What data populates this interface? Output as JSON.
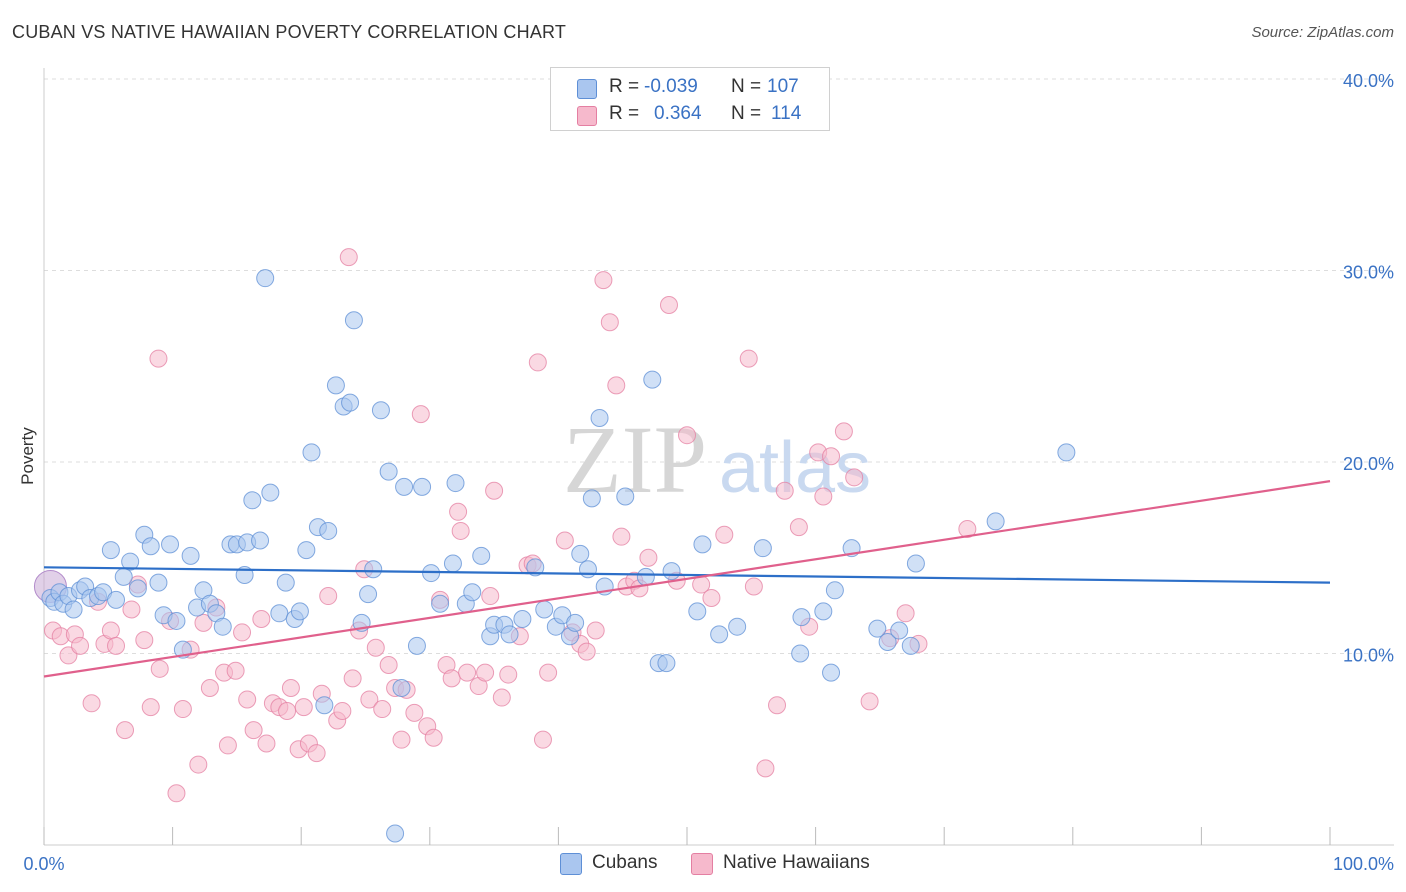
{
  "header": {
    "title": "CUBAN VS NATIVE HAWAIIAN POVERTY CORRELATION CHART",
    "source": "Source: ZipAtlas.com"
  },
  "watermark": {
    "zip": "ZIP",
    "atlas": "atlas"
  },
  "legend": {
    "rows": [
      {
        "r_label": "R =",
        "r_value": "-0.039",
        "n_label": "N =",
        "n_value": "107"
      },
      {
        "r_label": "R =",
        "r_value": "0.364",
        "n_label": "N =",
        "n_value": "114"
      }
    ]
  },
  "bottom_legend": {
    "items": [
      "Cubans",
      "Native Hawaiians"
    ]
  },
  "colors": {
    "cubans_fill": "#aac6ef",
    "cubans_stroke": "#5e8fd6",
    "cubans_line": "#2d6fc8",
    "hawaiians_fill": "#f6b9cc",
    "hawaiians_stroke": "#e47fa2",
    "hawaiians_line": "#e0608c",
    "tick_text": "#3a72c4",
    "grid": "#dddddd"
  },
  "chart_data": {
    "type": "scatter",
    "title": "CUBAN VS NATIVE HAWAIIAN POVERTY CORRELATION CHART",
    "xlabel": "",
    "ylabel": "Poverty",
    "xlim": [
      0,
      100
    ],
    "ylim": [
      0,
      40
    ],
    "x_tick_labels": [
      "0.0%",
      "100.0%"
    ],
    "y_ticks": [
      10,
      20,
      30,
      40
    ],
    "y_tick_labels": [
      "10.0%",
      "20.0%",
      "30.0%",
      "40.0%"
    ],
    "grid": true,
    "legend_position": "top-center",
    "series": [
      {
        "name": "Cubans",
        "R": -0.039,
        "N": 107,
        "trend": {
          "x": [
            0,
            100
          ],
          "y": [
            14.5,
            13.7
          ]
        },
        "points": [
          [
            0.5,
            12.9
          ],
          [
            0.8,
            12.7
          ],
          [
            1.2,
            13.2
          ],
          [
            1.5,
            12.6
          ],
          [
            1.9,
            13.0
          ],
          [
            2.3,
            12.3
          ],
          [
            2.8,
            13.3
          ],
          [
            3.2,
            13.5
          ],
          [
            3.6,
            12.9
          ],
          [
            4.2,
            13.0
          ],
          [
            4.6,
            13.2
          ],
          [
            5.2,
            15.4
          ],
          [
            5.6,
            12.8
          ],
          [
            6.2,
            14.0
          ],
          [
            6.7,
            14.8
          ],
          [
            7.3,
            13.4
          ],
          [
            7.8,
            16.2
          ],
          [
            8.3,
            15.6
          ],
          [
            8.9,
            13.7
          ],
          [
            9.3,
            12.0
          ],
          [
            9.8,
            15.7
          ],
          [
            10.3,
            11.7
          ],
          [
            10.8,
            10.2
          ],
          [
            11.4,
            15.1
          ],
          [
            11.9,
            12.4
          ],
          [
            12.4,
            13.3
          ],
          [
            12.9,
            12.6
          ],
          [
            13.4,
            12.1
          ],
          [
            13.9,
            11.4
          ],
          [
            14.5,
            15.7
          ],
          [
            15.0,
            15.7
          ],
          [
            15.6,
            14.1
          ],
          [
            15.8,
            15.8
          ],
          [
            16.2,
            18.0
          ],
          [
            16.8,
            15.9
          ],
          [
            17.2,
            29.6
          ],
          [
            17.6,
            18.4
          ],
          [
            18.3,
            12.1
          ],
          [
            18.8,
            13.7
          ],
          [
            19.5,
            11.8
          ],
          [
            19.9,
            12.2
          ],
          [
            20.4,
            15.4
          ],
          [
            20.8,
            20.5
          ],
          [
            21.3,
            16.6
          ],
          [
            21.8,
            7.3
          ],
          [
            22.1,
            16.4
          ],
          [
            22.7,
            24.0
          ],
          [
            23.3,
            22.9
          ],
          [
            23.8,
            23.1
          ],
          [
            24.1,
            27.4
          ],
          [
            24.7,
            11.6
          ],
          [
            25.2,
            13.1
          ],
          [
            25.6,
            14.4
          ],
          [
            26.2,
            22.7
          ],
          [
            26.8,
            19.5
          ],
          [
            27.3,
            0.6
          ],
          [
            27.8,
            8.2
          ],
          [
            28.0,
            18.7
          ],
          [
            29.0,
            10.4
          ],
          [
            29.4,
            18.7
          ],
          [
            30.1,
            14.2
          ],
          [
            30.8,
            12.6
          ],
          [
            31.8,
            14.7
          ],
          [
            32.0,
            18.9
          ],
          [
            32.8,
            12.6
          ],
          [
            33.3,
            13.2
          ],
          [
            34.0,
            15.1
          ],
          [
            34.7,
            10.9
          ],
          [
            35.0,
            11.5
          ],
          [
            35.8,
            11.5
          ],
          [
            36.2,
            11.0
          ],
          [
            37.2,
            11.8
          ],
          [
            38.2,
            14.5
          ],
          [
            38.9,
            12.3
          ],
          [
            39.8,
            11.4
          ],
          [
            40.3,
            12.0
          ],
          [
            40.9,
            10.9
          ],
          [
            41.3,
            11.6
          ],
          [
            41.7,
            15.2
          ],
          [
            42.3,
            14.4
          ],
          [
            42.6,
            18.1
          ],
          [
            43.2,
            22.3
          ],
          [
            43.6,
            13.5
          ],
          [
            45.2,
            18.2
          ],
          [
            46.8,
            14.0
          ],
          [
            47.3,
            24.3
          ],
          [
            47.8,
            9.5
          ],
          [
            48.4,
            9.5
          ],
          [
            48.8,
            14.3
          ],
          [
            50.8,
            12.2
          ],
          [
            51.2,
            15.7
          ],
          [
            52.5,
            11.0
          ],
          [
            53.9,
            11.4
          ],
          [
            55.9,
            15.5
          ],
          [
            58.8,
            10.0
          ],
          [
            58.9,
            11.9
          ],
          [
            60.6,
            12.2
          ],
          [
            61.2,
            9.0
          ],
          [
            61.5,
            13.3
          ],
          [
            62.8,
            15.5
          ],
          [
            64.8,
            11.3
          ],
          [
            65.6,
            10.6
          ],
          [
            66.5,
            11.2
          ],
          [
            67.4,
            10.4
          ],
          [
            67.8,
            14.7
          ],
          [
            74.0,
            16.9
          ],
          [
            79.5,
            20.5
          ]
        ]
      },
      {
        "name": "Native Hawaiians",
        "R": 0.364,
        "N": 114,
        "trend": {
          "x": [
            0,
            100
          ],
          "y": [
            8.8,
            19.0
          ]
        },
        "points": [
          [
            0.7,
            11.2
          ],
          [
            1.3,
            10.9
          ],
          [
            1.9,
            9.9
          ],
          [
            2.4,
            11.0
          ],
          [
            2.8,
            10.4
          ],
          [
            3.7,
            7.4
          ],
          [
            4.2,
            12.7
          ],
          [
            4.7,
            10.5
          ],
          [
            5.2,
            11.2
          ],
          [
            5.6,
            10.4
          ],
          [
            6.3,
            6.0
          ],
          [
            6.8,
            12.3
          ],
          [
            7.3,
            13.6
          ],
          [
            7.8,
            10.7
          ],
          [
            8.3,
            7.2
          ],
          [
            9.0,
            9.2
          ],
          [
            8.9,
            25.4
          ],
          [
            9.8,
            11.7
          ],
          [
            10.3,
            2.7
          ],
          [
            10.8,
            7.1
          ],
          [
            11.4,
            10.2
          ],
          [
            12.0,
            4.2
          ],
          [
            12.4,
            11.6
          ],
          [
            12.9,
            8.2
          ],
          [
            13.4,
            12.4
          ],
          [
            14.0,
            9.0
          ],
          [
            14.3,
            5.2
          ],
          [
            14.9,
            9.1
          ],
          [
            15.4,
            11.1
          ],
          [
            15.8,
            7.6
          ],
          [
            16.3,
            6.0
          ],
          [
            16.9,
            11.8
          ],
          [
            17.3,
            5.3
          ],
          [
            17.8,
            7.4
          ],
          [
            18.3,
            7.2
          ],
          [
            18.9,
            7.0
          ],
          [
            19.2,
            8.2
          ],
          [
            19.8,
            5.0
          ],
          [
            20.2,
            7.2
          ],
          [
            20.6,
            5.3
          ],
          [
            21.2,
            4.8
          ],
          [
            21.6,
            7.9
          ],
          [
            22.1,
            13.0
          ],
          [
            22.8,
            6.5
          ],
          [
            23.2,
            7.0
          ],
          [
            23.7,
            30.7
          ],
          [
            24.0,
            8.7
          ],
          [
            24.5,
            11.2
          ],
          [
            24.9,
            14.4
          ],
          [
            25.3,
            7.6
          ],
          [
            25.8,
            10.3
          ],
          [
            26.3,
            7.1
          ],
          [
            26.8,
            9.4
          ],
          [
            27.3,
            8.2
          ],
          [
            27.8,
            5.5
          ],
          [
            28.2,
            8.1
          ],
          [
            28.8,
            6.9
          ],
          [
            29.3,
            22.5
          ],
          [
            29.8,
            6.2
          ],
          [
            30.3,
            5.6
          ],
          [
            30.8,
            12.8
          ],
          [
            31.3,
            9.4
          ],
          [
            31.7,
            8.7
          ],
          [
            32.2,
            17.4
          ],
          [
            32.4,
            16.4
          ],
          [
            32.9,
            9.0
          ],
          [
            33.8,
            8.3
          ],
          [
            34.3,
            9.0
          ],
          [
            34.7,
            13.0
          ],
          [
            35.0,
            18.5
          ],
          [
            35.6,
            7.7
          ],
          [
            36.1,
            8.9
          ],
          [
            37.0,
            10.9
          ],
          [
            37.6,
            14.6
          ],
          [
            38.0,
            14.7
          ],
          [
            38.4,
            25.2
          ],
          [
            38.8,
            5.5
          ],
          [
            39.2,
            9.0
          ],
          [
            40.5,
            15.9
          ],
          [
            41.1,
            11.1
          ],
          [
            41.7,
            10.5
          ],
          [
            42.2,
            10.1
          ],
          [
            42.9,
            11.2
          ],
          [
            43.5,
            29.5
          ],
          [
            44.0,
            27.3
          ],
          [
            44.5,
            24.0
          ],
          [
            44.9,
            16.1
          ],
          [
            45.3,
            13.5
          ],
          [
            45.9,
            13.8
          ],
          [
            46.3,
            13.4
          ],
          [
            47.0,
            15.0
          ],
          [
            48.6,
            28.2
          ],
          [
            49.2,
            13.8
          ],
          [
            50.0,
            21.4
          ],
          [
            51.1,
            13.6
          ],
          [
            51.9,
            12.9
          ],
          [
            52.9,
            16.2
          ],
          [
            54.8,
            25.4
          ],
          [
            55.2,
            13.5
          ],
          [
            56.1,
            4.0
          ],
          [
            57.0,
            7.3
          ],
          [
            57.6,
            18.5
          ],
          [
            58.7,
            16.6
          ],
          [
            59.5,
            11.4
          ],
          [
            60.2,
            20.5
          ],
          [
            60.6,
            18.2
          ],
          [
            61.2,
            20.3
          ],
          [
            62.2,
            21.6
          ],
          [
            63.0,
            19.2
          ],
          [
            64.2,
            7.5
          ],
          [
            65.8,
            10.8
          ],
          [
            67.0,
            12.1
          ],
          [
            68.0,
            10.5
          ],
          [
            71.8,
            16.5
          ]
        ]
      }
    ]
  }
}
